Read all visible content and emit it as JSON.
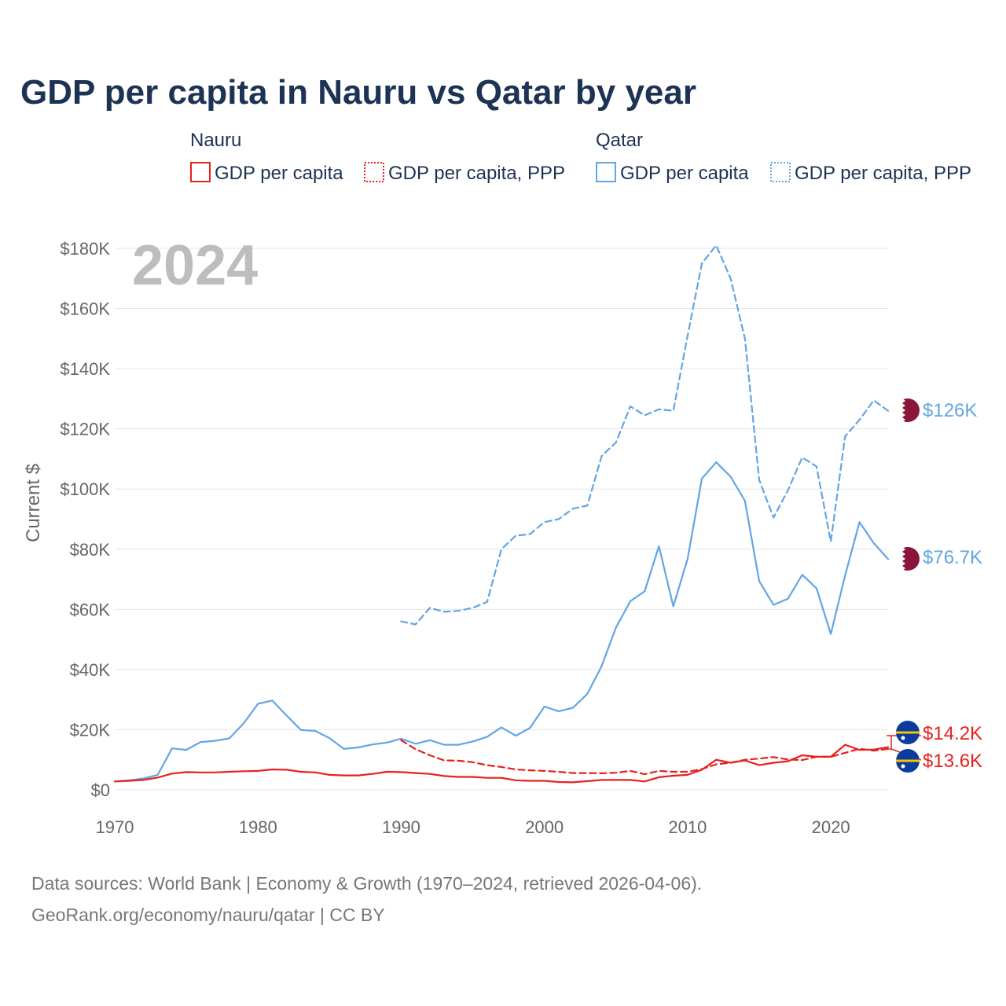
{
  "title": "GDP per capita in Nauru vs Qatar by year",
  "year_watermark": "2024",
  "colors": {
    "nauru": "#e8201e",
    "qatar": "#63a5e3",
    "text": "#1d3354",
    "grid": "#e6e6e6",
    "axis_text": "#666666"
  },
  "legend": {
    "groups": [
      {
        "name": "Nauru",
        "items": [
          "GDP per capita",
          "GDP per capita, PPP"
        ]
      },
      {
        "name": "Qatar",
        "items": [
          "GDP per capita",
          "GDP per capita, PPP"
        ]
      }
    ]
  },
  "end_labels": {
    "qatar_ppp": "$126K",
    "qatar_gdp": "$76.7K",
    "nauru_high": "$14.2K",
    "nauru_low": "$13.6K"
  },
  "source_lines": [
    "Data sources: World Bank | Economy & Growth (1970–2024, retrieved 2026-04-06).",
    "GeoRank.org/economy/nauru/qatar | CC BY"
  ],
  "chart_data": {
    "type": "line",
    "title": "GDP per capita in Nauru vs Qatar by year",
    "xlabel": "",
    "ylabel": "Current $",
    "xlim": [
      1970,
      2024
    ],
    "ylim": [
      0,
      180000
    ],
    "x_ticks": [
      1970,
      1980,
      1990,
      2000,
      2010,
      2020
    ],
    "y_ticks": [
      0,
      20000,
      40000,
      60000,
      80000,
      100000,
      120000,
      140000,
      160000,
      180000
    ],
    "y_tick_labels": [
      "$0",
      "$20K",
      "$40K",
      "$60K",
      "$80K",
      "$100K",
      "$120K",
      "$140K",
      "$160K",
      "$180K"
    ],
    "grid": true,
    "series": [
      {
        "name": "Qatar GDP per capita",
        "country": "qatar",
        "style": "solid",
        "x": [
          1970,
          1971,
          1972,
          1973,
          1974,
          1975,
          1976,
          1977,
          1978,
          1979,
          1980,
          1981,
          1982,
          1983,
          1984,
          1985,
          1986,
          1987,
          1988,
          1989,
          1990,
          1991,
          1992,
          1993,
          1994,
          1995,
          1996,
          1997,
          1998,
          1999,
          2000,
          2001,
          2002,
          2003,
          2004,
          2005,
          2006,
          2007,
          2008,
          2009,
          2010,
          2011,
          2012,
          2013,
          2014,
          2015,
          2016,
          2017,
          2018,
          2019,
          2020,
          2021,
          2022,
          2023,
          2024
        ],
        "values": [
          2800,
          3200,
          3800,
          5000,
          13800,
          13300,
          15900,
          16300,
          17100,
          22100,
          28600,
          29700,
          24700,
          19900,
          19600,
          17200,
          13600,
          14100,
          15100,
          15700,
          17000,
          15300,
          16500,
          15000,
          15000,
          16100,
          17600,
          20800,
          18000,
          20600,
          27700,
          26100,
          27300,
          31900,
          41200,
          54000,
          62700,
          66000,
          81000,
          61000,
          76800,
          103500,
          108900,
          104100,
          96100,
          69400,
          61500,
          63500,
          71500,
          67000,
          51800,
          71300,
          89000,
          82000,
          76700
        ]
      },
      {
        "name": "Qatar GDP per capita, PPP",
        "country": "qatar",
        "style": "dashed",
        "x": [
          1990,
          1991,
          1992,
          1993,
          1994,
          1995,
          1996,
          1997,
          1998,
          1999,
          2000,
          2001,
          2002,
          2003,
          2004,
          2005,
          2006,
          2007,
          2008,
          2009,
          2010,
          2011,
          2012,
          2013,
          2014,
          2015,
          2016,
          2017,
          2018,
          2019,
          2020,
          2021,
          2022,
          2023,
          2024
        ],
        "values": [
          56000,
          55000,
          60500,
          59200,
          59500,
          60500,
          62500,
          80000,
          84500,
          85000,
          89000,
          90000,
          93500,
          94500,
          111000,
          115500,
          127500,
          124500,
          126500,
          126000,
          151000,
          175000,
          181000,
          170000,
          150000,
          103000,
          90500,
          99500,
          110500,
          107500,
          82500,
          117500,
          123000,
          129500,
          126000
        ]
      },
      {
        "name": "Nauru GDP per capita",
        "country": "nauru",
        "style": "solid",
        "x": [
          1970,
          1971,
          1972,
          1973,
          1974,
          1975,
          1976,
          1977,
          1978,
          1979,
          1980,
          1981,
          1982,
          1983,
          1984,
          1985,
          1986,
          1987,
          1988,
          1989,
          1990,
          1991,
          1992,
          1993,
          1994,
          1995,
          1996,
          1997,
          1998,
          1999,
          2000,
          2001,
          2002,
          2003,
          2004,
          2005,
          2006,
          2007,
          2008,
          2009,
          2010,
          2011,
          2012,
          2013,
          2014,
          2015,
          2016,
          2017,
          2018,
          2019,
          2020,
          2021,
          2022,
          2023,
          2024
        ],
        "values": [
          2800,
          3000,
          3300,
          4100,
          5400,
          5900,
          5800,
          5800,
          6000,
          6200,
          6300,
          6800,
          6700,
          6000,
          5800,
          5000,
          4800,
          4800,
          5300,
          6000,
          5900,
          5600,
          5300,
          4600,
          4300,
          4300,
          4000,
          4000,
          3200,
          3000,
          3000,
          2600,
          2500,
          2900,
          3300,
          3300,
          3300,
          2800,
          4200,
          4700,
          5000,
          6700,
          10000,
          9000,
          9800,
          8200,
          9000,
          9500,
          11500,
          11000,
          11000,
          15000,
          13300,
          13400,
          14200
        ]
      },
      {
        "name": "Nauru GDP per capita, PPP",
        "country": "nauru",
        "style": "dashed",
        "x": [
          1990,
          1991,
          1992,
          1993,
          1994,
          1995,
          1996,
          1997,
          1998,
          1999,
          2000,
          2001,
          2002,
          2003,
          2004,
          2005,
          2006,
          2007,
          2008,
          2009,
          2010,
          2011,
          2012,
          2013,
          2014,
          2015,
          2016,
          2017,
          2018,
          2019,
          2020,
          2021,
          2022,
          2023,
          2024
        ],
        "values": [
          16500,
          13500,
          11500,
          9800,
          9700,
          9200,
          8200,
          7600,
          6800,
          6500,
          6300,
          6000,
          5600,
          5600,
          5500,
          5700,
          6300,
          5200,
          6300,
          6000,
          6000,
          6900,
          8500,
          9000,
          10000,
          10400,
          10900,
          10100,
          9900,
          11000,
          11000,
          12300,
          13700,
          13000,
          13600
        ]
      }
    ]
  }
}
